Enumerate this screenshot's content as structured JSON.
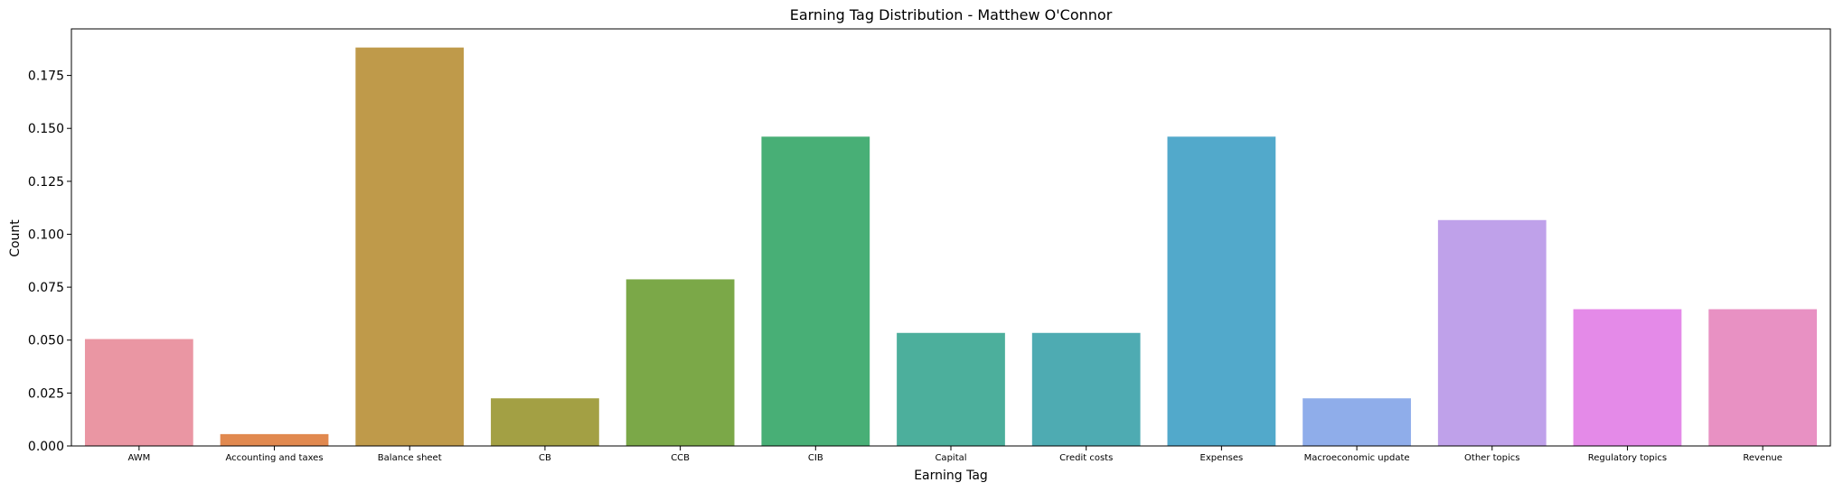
{
  "chart_data": {
    "type": "bar",
    "title": "Earning Tag Distribution - Matthew O'Connor",
    "xlabel": "Earning Tag",
    "ylabel": "Count",
    "ylim": [
      0,
      0.197
    ],
    "yticks": [
      0.0,
      0.025,
      0.05,
      0.075,
      0.1,
      0.125,
      0.15,
      0.175
    ],
    "ytick_labels": [
      "0.000",
      "0.025",
      "0.050",
      "0.075",
      "0.100",
      "0.125",
      "0.150",
      "0.175"
    ],
    "grid": false,
    "legend": "none",
    "categories": [
      "AWM",
      "Accounting and taxes",
      "Balance sheet",
      "CB",
      "CCB",
      "CIB",
      "Capital",
      "Credit costs",
      "Expenses",
      "Macroeconomic update",
      "Other topics",
      "Regulatory topics",
      "Revenue"
    ],
    "values": [
      0.0505,
      0.0056,
      0.1882,
      0.0225,
      0.0787,
      0.1461,
      0.0534,
      0.0534,
      0.1461,
      0.0225,
      0.1067,
      0.0646,
      0.0646
    ],
    "colors": [
      "#ea96a3",
      "#e1894f",
      "#bf9a4a",
      "#a3a044",
      "#7ba848",
      "#48af76",
      "#4caf9c",
      "#4eabb2",
      "#52a9cb",
      "#8fadea",
      "#bfa1ea",
      "#e48ae8",
      "#e891c3"
    ]
  }
}
